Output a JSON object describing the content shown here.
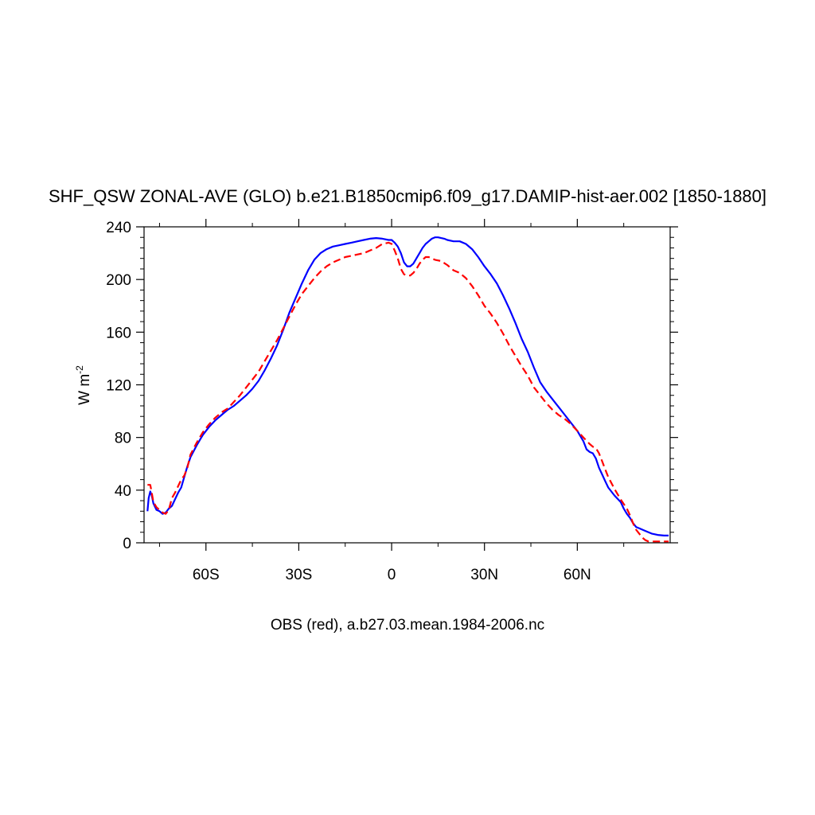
{
  "chart_data": {
    "type": "line",
    "title": "SHF_QSW ZONAL-AVE (GLO) b.e21.B1850cmip6.f09_g17.DAMIP-hist-aer.002 [1850-1880]",
    "xlabel": "OBS (red), a.b27.03.mean.1984-2006.nc",
    "ylabel_base": "W m",
    "ylabel_exp": "-2",
    "xlim": [
      -80,
      90
    ],
    "ylim": [
      0,
      240
    ],
    "grid": false,
    "xticks": [
      {
        "value": -60,
        "label": "60S"
      },
      {
        "value": -30,
        "label": "30S"
      },
      {
        "value": 0,
        "label": "0"
      },
      {
        "value": 30,
        "label": "30N"
      },
      {
        "value": 60,
        "label": "60N"
      }
    ],
    "yticks": [
      {
        "value": 0,
        "label": "0"
      },
      {
        "value": 40,
        "label": "40"
      },
      {
        "value": 80,
        "label": "80"
      },
      {
        "value": 120,
        "label": "120"
      },
      {
        "value": 160,
        "label": "160"
      },
      {
        "value": 200,
        "label": "200"
      },
      {
        "value": 240,
        "label": "240"
      }
    ],
    "series": [
      {
        "color": "#0000ff",
        "dash": "solid",
        "points": [
          [
            -78.9,
            24
          ],
          [
            -78.5,
            34
          ],
          [
            -78,
            39
          ],
          [
            -77.5,
            36
          ],
          [
            -77,
            30
          ],
          [
            -76,
            25
          ],
          [
            -75,
            24
          ],
          [
            -74,
            22
          ],
          [
            -73,
            23
          ],
          [
            -72,
            26
          ],
          [
            -71,
            28
          ],
          [
            -70,
            33
          ],
          [
            -69,
            38
          ],
          [
            -68,
            42
          ],
          [
            -67,
            50
          ],
          [
            -66,
            58
          ],
          [
            -65,
            65
          ],
          [
            -63,
            74
          ],
          [
            -61,
            82
          ],
          [
            -59,
            88
          ],
          [
            -57,
            93
          ],
          [
            -55,
            97
          ],
          [
            -53,
            101
          ],
          [
            -51,
            104
          ],
          [
            -49,
            108
          ],
          [
            -47,
            112
          ],
          [
            -45,
            117
          ],
          [
            -43,
            123
          ],
          [
            -41,
            131
          ],
          [
            -39,
            140
          ],
          [
            -37,
            150
          ],
          [
            -35,
            162
          ],
          [
            -33,
            175
          ],
          [
            -31,
            186
          ],
          [
            -29,
            197
          ],
          [
            -27,
            207
          ],
          [
            -25,
            215
          ],
          [
            -23,
            220
          ],
          [
            -21,
            223
          ],
          [
            -19,
            225
          ],
          [
            -17,
            226
          ],
          [
            -15,
            227
          ],
          [
            -13,
            228
          ],
          [
            -11,
            229
          ],
          [
            -9,
            230
          ],
          [
            -7,
            231
          ],
          [
            -5,
            231.5
          ],
          [
            -3,
            231
          ],
          [
            -1,
            230
          ],
          [
            0,
            230
          ],
          [
            1,
            228
          ],
          [
            2,
            225
          ],
          [
            3,
            220
          ],
          [
            4,
            213
          ],
          [
            5,
            210
          ],
          [
            6,
            210
          ],
          [
            7,
            212
          ],
          [
            8,
            216
          ],
          [
            9,
            220
          ],
          [
            10,
            224
          ],
          [
            11,
            227
          ],
          [
            12,
            229
          ],
          [
            13,
            231
          ],
          [
            14,
            232
          ],
          [
            15,
            232
          ],
          [
            16,
            231.5
          ],
          [
            17,
            231
          ],
          [
            18,
            230
          ],
          [
            20,
            229
          ],
          [
            22,
            229
          ],
          [
            24,
            227
          ],
          [
            26,
            223
          ],
          [
            28,
            217
          ],
          [
            30,
            210
          ],
          [
            32,
            204
          ],
          [
            34,
            197
          ],
          [
            36,
            188
          ],
          [
            38,
            178
          ],
          [
            40,
            167
          ],
          [
            42,
            155
          ],
          [
            44,
            145
          ],
          [
            46,
            133
          ],
          [
            48,
            122
          ],
          [
            50,
            115
          ],
          [
            52,
            109
          ],
          [
            54,
            103
          ],
          [
            56,
            97
          ],
          [
            58,
            91
          ],
          [
            60,
            85
          ],
          [
            62,
            77
          ],
          [
            63,
            71
          ],
          [
            64,
            69
          ],
          [
            65,
            68
          ],
          [
            66,
            64
          ],
          [
            67,
            57
          ],
          [
            68,
            52
          ],
          [
            69,
            47
          ],
          [
            70,
            42
          ],
          [
            72,
            36
          ],
          [
            74,
            31
          ],
          [
            75,
            26
          ],
          [
            76,
            22
          ],
          [
            77,
            19
          ],
          [
            78,
            15
          ],
          [
            79,
            12
          ],
          [
            80,
            11
          ],
          [
            82,
            9
          ],
          [
            84,
            7
          ],
          [
            86,
            6
          ],
          [
            88,
            5.5
          ],
          [
            89.5,
            5.5
          ]
        ]
      },
      {
        "color": "#ff0000",
        "dash": "dashed",
        "points": [
          [
            -78.9,
            44
          ],
          [
            -78.5,
            44
          ],
          [
            -78,
            44
          ],
          [
            -77.5,
            38
          ],
          [
            -77,
            31
          ],
          [
            -76,
            27
          ],
          [
            -75,
            25
          ],
          [
            -74,
            23
          ],
          [
            -73,
            22
          ],
          [
            -72,
            25
          ],
          [
            -71,
            34
          ],
          [
            -70,
            38
          ],
          [
            -69,
            43
          ],
          [
            -68,
            48
          ],
          [
            -67,
            51
          ],
          [
            -66,
            57
          ],
          [
            -65,
            67
          ],
          [
            -63,
            76
          ],
          [
            -61,
            84
          ],
          [
            -59,
            90
          ],
          [
            -57,
            95
          ],
          [
            -55,
            99
          ],
          [
            -53,
            102
          ],
          [
            -51,
            107
          ],
          [
            -49,
            112
          ],
          [
            -47,
            118
          ],
          [
            -45,
            124
          ],
          [
            -43,
            130
          ],
          [
            -41,
            138
          ],
          [
            -39,
            146
          ],
          [
            -37,
            154
          ],
          [
            -35,
            163
          ],
          [
            -33,
            172
          ],
          [
            -31,
            181
          ],
          [
            -29,
            189
          ],
          [
            -27,
            195
          ],
          [
            -25,
            201
          ],
          [
            -23,
            206
          ],
          [
            -21,
            210
          ],
          [
            -19,
            213
          ],
          [
            -17,
            215
          ],
          [
            -15,
            217
          ],
          [
            -13,
            218
          ],
          [
            -11,
            219
          ],
          [
            -9,
            220
          ],
          [
            -7,
            222
          ],
          [
            -5,
            224
          ],
          [
            -3,
            227
          ],
          [
            -1,
            228
          ],
          [
            0,
            227
          ],
          [
            1,
            222
          ],
          [
            2,
            216
          ],
          [
            3,
            208
          ],
          [
            4,
            204
          ],
          [
            5,
            203
          ],
          [
            6,
            203
          ],
          [
            7,
            205
          ],
          [
            8,
            208
          ],
          [
            9,
            212
          ],
          [
            10,
            215
          ],
          [
            11,
            217
          ],
          [
            12,
            217
          ],
          [
            13,
            216
          ],
          [
            14,
            215
          ],
          [
            16,
            214
          ],
          [
            18,
            211
          ],
          [
            20,
            207
          ],
          [
            22,
            205
          ],
          [
            24,
            201
          ],
          [
            26,
            195
          ],
          [
            28,
            188
          ],
          [
            30,
            180
          ],
          [
            32,
            174
          ],
          [
            34,
            167
          ],
          [
            36,
            159
          ],
          [
            38,
            150
          ],
          [
            40,
            142
          ],
          [
            42,
            134
          ],
          [
            44,
            127
          ],
          [
            46,
            118
          ],
          [
            48,
            112
          ],
          [
            50,
            106
          ],
          [
            52,
            101
          ],
          [
            54,
            97
          ],
          [
            56,
            94
          ],
          [
            58,
            90
          ],
          [
            60,
            85
          ],
          [
            62,
            80
          ],
          [
            64,
            75
          ],
          [
            65,
            73
          ],
          [
            66,
            72
          ],
          [
            67,
            68
          ],
          [
            68,
            62
          ],
          [
            69,
            56
          ],
          [
            70,
            50
          ],
          [
            72,
            41
          ],
          [
            74,
            33
          ],
          [
            76,
            26
          ],
          [
            77,
            21
          ],
          [
            78,
            15
          ],
          [
            79,
            10
          ],
          [
            80,
            7
          ],
          [
            81,
            4
          ],
          [
            82,
            2
          ],
          [
            83,
            1
          ],
          [
            85,
            1
          ],
          [
            87,
            1
          ],
          [
            89.5,
            1
          ]
        ]
      }
    ]
  }
}
